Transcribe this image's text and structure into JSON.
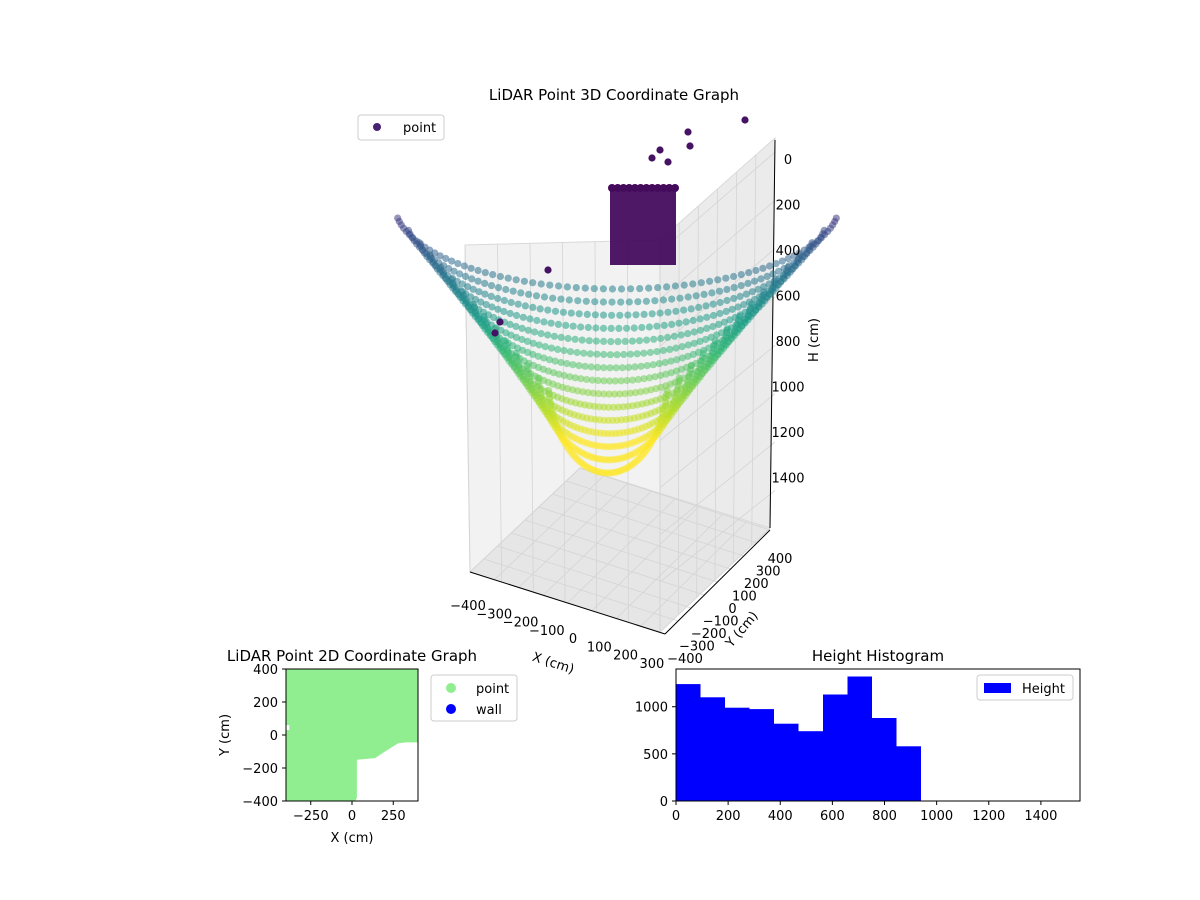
{
  "chart_data": [
    {
      "type": "scatter",
      "projection": "3d",
      "title": "LiDAR Point 3D Coordinate Graph",
      "xlabel": "X (cm)",
      "ylabel": "Y (cm)",
      "zlabel": "H (cm)",
      "x_ticks": [
        "−400",
        "−300",
        "−200",
        "−100",
        "0",
        "100",
        "200",
        "300"
      ],
      "y_ticks": [
        "−400",
        "−300",
        "−200",
        "−100",
        "0",
        "100",
        "200",
        "300",
        "400"
      ],
      "z_ticks": [
        "0",
        "200",
        "400",
        "600",
        "800",
        "1000",
        "1200",
        "1400"
      ],
      "xlim": [
        -400,
        400
      ],
      "ylim": [
        -400,
        400
      ],
      "zlim": [
        1500,
        0
      ],
      "z_inverted": true,
      "colormap": "viridis",
      "grid": true,
      "legend": {
        "entries": [
          "point"
        ],
        "placement": "top-left"
      },
      "series": [
        {
          "name": "point",
          "color": "#482374"
        }
      ],
      "description_values": {
        "bowl_rings": 15,
        "z_min": 0,
        "z_max": 1150
      }
    },
    {
      "type": "scatter",
      "title": "LiDAR Point 2D Coordinate Graph",
      "xlabel": "X (cm)",
      "ylabel": "Y (cm)",
      "x_ticks": [
        "−250",
        "0",
        "250"
      ],
      "y_ticks": [
        "400",
        "200",
        "0",
        "−200",
        "−400"
      ],
      "xlim": [
        -400,
        400
      ],
      "ylim": [
        -400,
        400
      ],
      "legend": {
        "entries": [
          "point",
          "wall"
        ],
        "placement": "outside-right"
      },
      "series": [
        {
          "name": "point",
          "color": "#90ee90",
          "region": [
            [
              -400,
              400
            ],
            [
              400,
              400
            ],
            [
              400,
              -45
            ],
            [
              330,
              -45
            ],
            [
              280,
              -50
            ],
            [
              200,
              -100
            ],
            [
              140,
              -140
            ],
            [
              30,
              -150
            ],
            [
              30,
              -380
            ],
            [
              20,
              -400
            ],
            [
              -400,
              -400
            ],
            [
              -400,
              30
            ],
            [
              -380,
              30
            ],
            [
              -380,
              60
            ],
            [
              -400,
              60
            ]
          ]
        },
        {
          "name": "wall",
          "color": "#0000ff",
          "region": []
        }
      ]
    },
    {
      "type": "bar",
      "subtype": "histogram",
      "title": "Height Histogram",
      "xlabel": "",
      "ylabel": "",
      "x_ticks": [
        "0",
        "200",
        "400",
        "600",
        "800",
        "1000",
        "1200",
        "1400"
      ],
      "y_ticks": [
        "0",
        "500",
        "1000"
      ],
      "xlim": [
        0,
        1550
      ],
      "ylim": [
        0,
        1400
      ],
      "legend": {
        "entries": [
          "Height"
        ],
        "placement": "top-right"
      },
      "series": [
        {
          "name": "Height",
          "color": "#0000ff",
          "bin_edges": [
            0,
            94,
            188,
            282,
            376,
            470,
            564,
            658,
            752,
            846,
            940
          ],
          "values": [
            1240,
            1100,
            990,
            975,
            820,
            740,
            1130,
            1320,
            880,
            580
          ]
        }
      ]
    }
  ]
}
